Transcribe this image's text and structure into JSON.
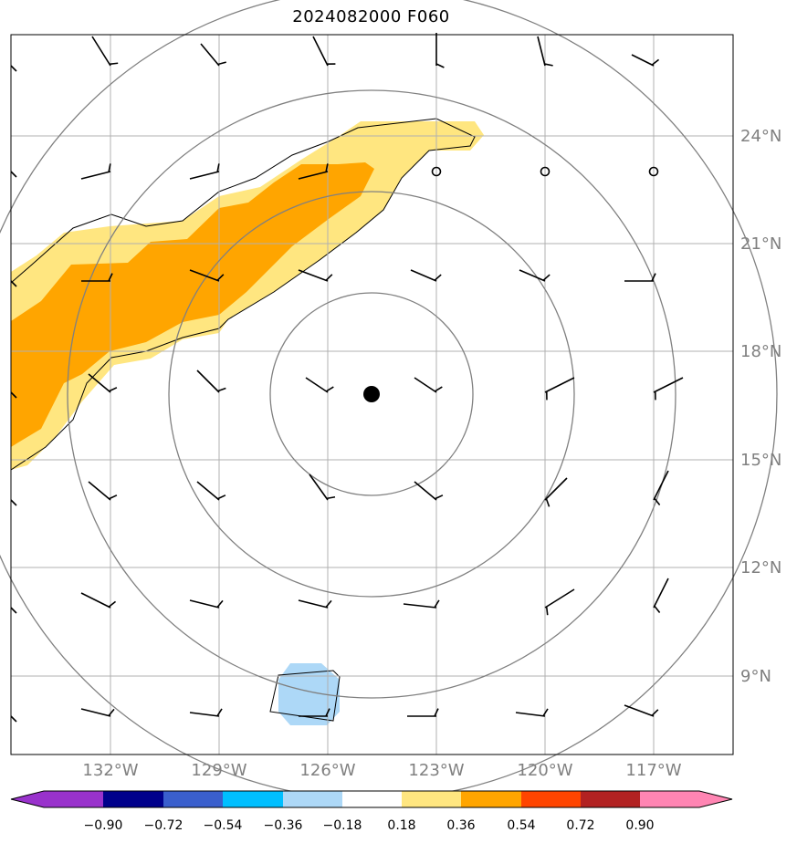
{
  "title": "2024082000 F060",
  "lat_labels": [
    "24°N",
    "21°N",
    "18°N",
    "15°N",
    "12°N",
    "9°N"
  ],
  "lon_labels": [
    "132°W",
    "129°W",
    "126°W",
    "123°W",
    "120°W",
    "117°W"
  ],
  "colorbar": {
    "ticks": [
      "−0.90",
      "−0.72",
      "−0.54",
      "−0.36",
      "−0.18",
      "0.18",
      "0.36",
      "0.54",
      "0.72",
      "0.90"
    ],
    "colors": [
      "#9932cc",
      "#00008b",
      "#3a5fcd",
      "#00bfff",
      "#add8f7",
      "#ffffff",
      "#ffe680",
      "#ffa500",
      "#ff4500",
      "#b22222",
      "#ff85b3"
    ]
  },
  "colors": {
    "grid": "#b0b0b0",
    "rings": "#808080",
    "fill_low": "#ffe680",
    "fill_mid": "#ffa500",
    "fill_neg": "#add8f7"
  },
  "storm_center": {
    "lat": 16.9,
    "lon": -124.7
  }
}
